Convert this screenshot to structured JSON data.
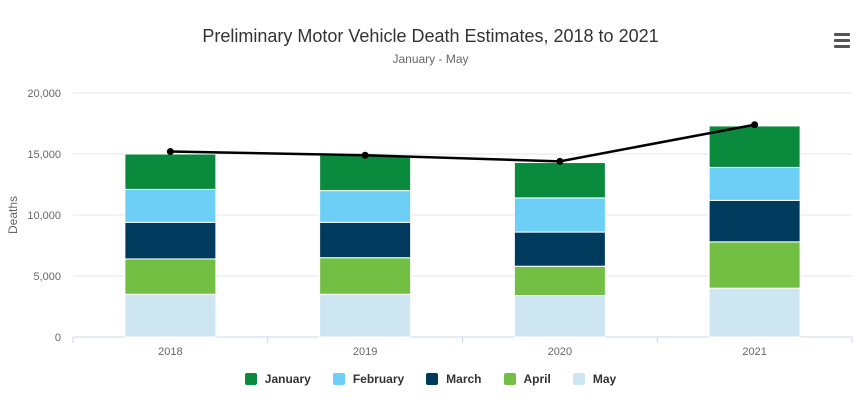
{
  "chart_data": {
    "type": "bar",
    "title": "Preliminary Motor Vehicle Death Estimates, 2018 to 2021",
    "subtitle": "January - May",
    "ylabel": "Deaths",
    "categories": [
      "2018",
      "2019",
      "2020",
      "2021"
    ],
    "ylim": [
      0,
      20000
    ],
    "yticks": [
      "0",
      "5,000",
      "10,000",
      "15,000",
      "20,000"
    ],
    "ytick_values": [
      0,
      5000,
      10000,
      15000,
      20000
    ],
    "series": [
      {
        "name": "January",
        "color": "#0a8a3d",
        "values": [
          2900,
          2900,
          2900,
          3400
        ]
      },
      {
        "name": "February",
        "color": "#6dcff6",
        "values": [
          2700,
          2600,
          2800,
          2700
        ]
      },
      {
        "name": "March",
        "color": "#003a5d",
        "values": [
          3000,
          2900,
          2800,
          3400
        ]
      },
      {
        "name": "April",
        "color": "#72bf44",
        "values": [
          2900,
          3000,
          2400,
          3800
        ]
      },
      {
        "name": "May",
        "color": "#cde6f2",
        "values": [
          3500,
          3500,
          3400,
          4000
        ]
      }
    ],
    "total_line": {
      "values": [
        15200,
        14900,
        14400,
        17400
      ],
      "color": "#000000"
    },
    "grid": true,
    "legend_position": "bottom-center"
  }
}
